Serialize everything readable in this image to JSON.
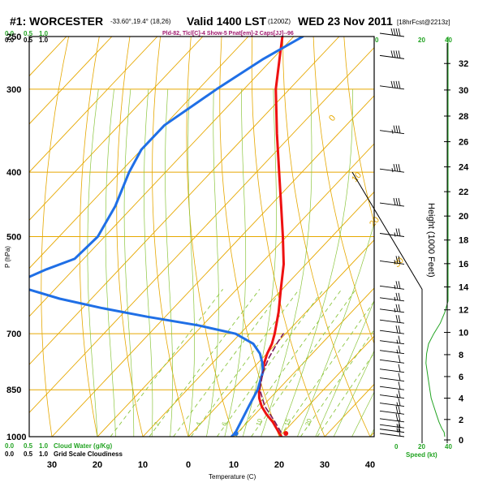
{
  "header": {
    "title": "#1: WORCESTER",
    "coords": "-33.60°,19.4° (18,26)",
    "valid": "Valid 1400 LST",
    "utc": "(1200Z)",
    "date": "WED 23 Nov 2011",
    "fcst": "[18hrFcst@2213z]",
    "indices": "Pld-82, Tlcl[C]-4 Show-5 Pnat[em]-2 Caps[JJ]--96"
  },
  "left_scales": {
    "top_green": [
      "0.0",
      "0.5",
      "1.0"
    ],
    "top_black": [
      "0.0",
      "0.5",
      "1.0"
    ],
    "bottom_green": [
      "0.0",
      "0.5",
      "1.0"
    ],
    "bottom_black": [
      "0.0",
      "0.5",
      "1.0"
    ],
    "cloud_water_label": "Cloud Water (g/Kg)",
    "cloudiness_label": "Grid Scale Cloudiness"
  },
  "right_scales": {
    "top": [
      "0",
      "20",
      "40"
    ],
    "bottom": [
      "0",
      "20",
      "40"
    ],
    "speed_label": "Speed (kt)"
  },
  "colors": {
    "isobar": "#e6a800",
    "isotherm": "#e6a800",
    "dry_adiabat": "#e6a800",
    "moist_adiabat": "#8cc63f",
    "mixing_ratio": "#8cc63f",
    "temperature": "#ee1111",
    "dewpoint": "#1f6fe6",
    "parcel": "#7a1a5a",
    "wind_profile": "#22a322",
    "green_scale": "#22a322"
  },
  "chart_data": {
    "type": "line",
    "title": "#1: WORCESTER",
    "xlabel": "Temperature (C)",
    "ylabel": "P (hPa)",
    "y2label": "Height (1000 Feet)",
    "xlim": [
      -40,
      50
    ],
    "ylim": [
      1000,
      250
    ],
    "yscale": "log",
    "x_ticks": [
      -30,
      -20,
      -10,
      0,
      10,
      20,
      30,
      40
    ],
    "x_tick_labels": [
      "30",
      "20",
      "10",
      "0",
      "10",
      "20",
      "30",
      "40"
    ],
    "y_ticks": [
      1000,
      850,
      700,
      500,
      400,
      300,
      250
    ],
    "height_ticks": [
      0,
      2,
      4,
      6,
      8,
      10,
      12,
      14,
      16,
      18,
      20,
      22,
      24,
      26,
      28,
      30,
      32
    ],
    "grid": true,
    "isotherm_labels": [
      -30,
      -20,
      -10,
      0,
      10,
      20,
      30
    ],
    "dry_adiabat_labels": [
      0,
      10,
      20,
      30
    ],
    "mixing_ratio_labels": [
      2,
      4,
      6,
      10,
      15,
      20
    ],
    "series": [
      {
        "name": "Temperature",
        "pressure": [
          1000,
          985,
          950,
          925,
          900,
          875,
          850,
          825,
          800,
          775,
          750,
          725,
          700,
          650,
          600,
          550,
          500,
          450,
          400,
          350,
          300,
          270,
          250
        ],
        "values": [
          20.5,
          19.0,
          15.5,
          12.5,
          9.8,
          7.6,
          5.8,
          4.3,
          3.0,
          1.4,
          0.1,
          -0.9,
          -2.4,
          -6.0,
          -10.3,
          -14.9,
          -20.8,
          -27.5,
          -35.0,
          -43.5,
          -53.0,
          -58.5,
          -62.5
        ]
      },
      {
        "name": "Dewpoint",
        "pressure": [
          1000,
          985,
          950,
          900,
          850,
          800,
          775,
          750,
          725,
          700,
          680,
          660,
          640,
          620,
          600,
          580,
          560,
          540,
          500,
          450,
          400,
          370,
          340,
          300,
          270,
          250
        ],
        "values": [
          9.5,
          9.5,
          8.5,
          7.0,
          5.5,
          3.0,
          1.0,
          -1.5,
          -5.0,
          -11.0,
          -21.0,
          -34.0,
          -46.0,
          -57.0,
          -66.0,
          -69.0,
          -66.0,
          -62.0,
          -61.5,
          -64.0,
          -68.0,
          -70.0,
          -70.0,
          -66.0,
          -62.0,
          -58.0
        ]
      },
      {
        "name": "Parcel",
        "pressure": [
          985,
          950,
          900,
          850,
          800,
          760,
          720,
          700
        ],
        "values": [
          19.5,
          16.0,
          10.5,
          6.0,
          3.0,
          1.3,
          0.0,
          -0.5
        ]
      }
    ]
  },
  "winds": {
    "pressure": [
      1000,
      985,
      970,
      950,
      925,
      900,
      875,
      850,
      825,
      800,
      775,
      750,
      725,
      700,
      675,
      650,
      625,
      600,
      550,
      500,
      450,
      400,
      350,
      300,
      270,
      250
    ],
    "speed_kt": [
      10,
      15,
      18,
      20,
      20,
      18,
      15,
      12,
      10,
      10,
      12,
      15,
      18,
      20,
      22,
      25,
      25,
      25,
      25,
      28,
      30,
      35,
      35,
      40,
      40,
      40
    ],
    "speed_profile_kt": [
      35,
      34,
      30,
      26,
      22,
      18,
      14,
      12,
      10,
      8,
      6,
      7,
      10,
      18,
      28,
      35,
      40,
      40,
      40,
      40,
      40,
      40,
      40,
      40,
      40,
      40
    ]
  },
  "markers": {
    "surface_temp": 22.0,
    "surface_dewpoint": 11.0
  }
}
